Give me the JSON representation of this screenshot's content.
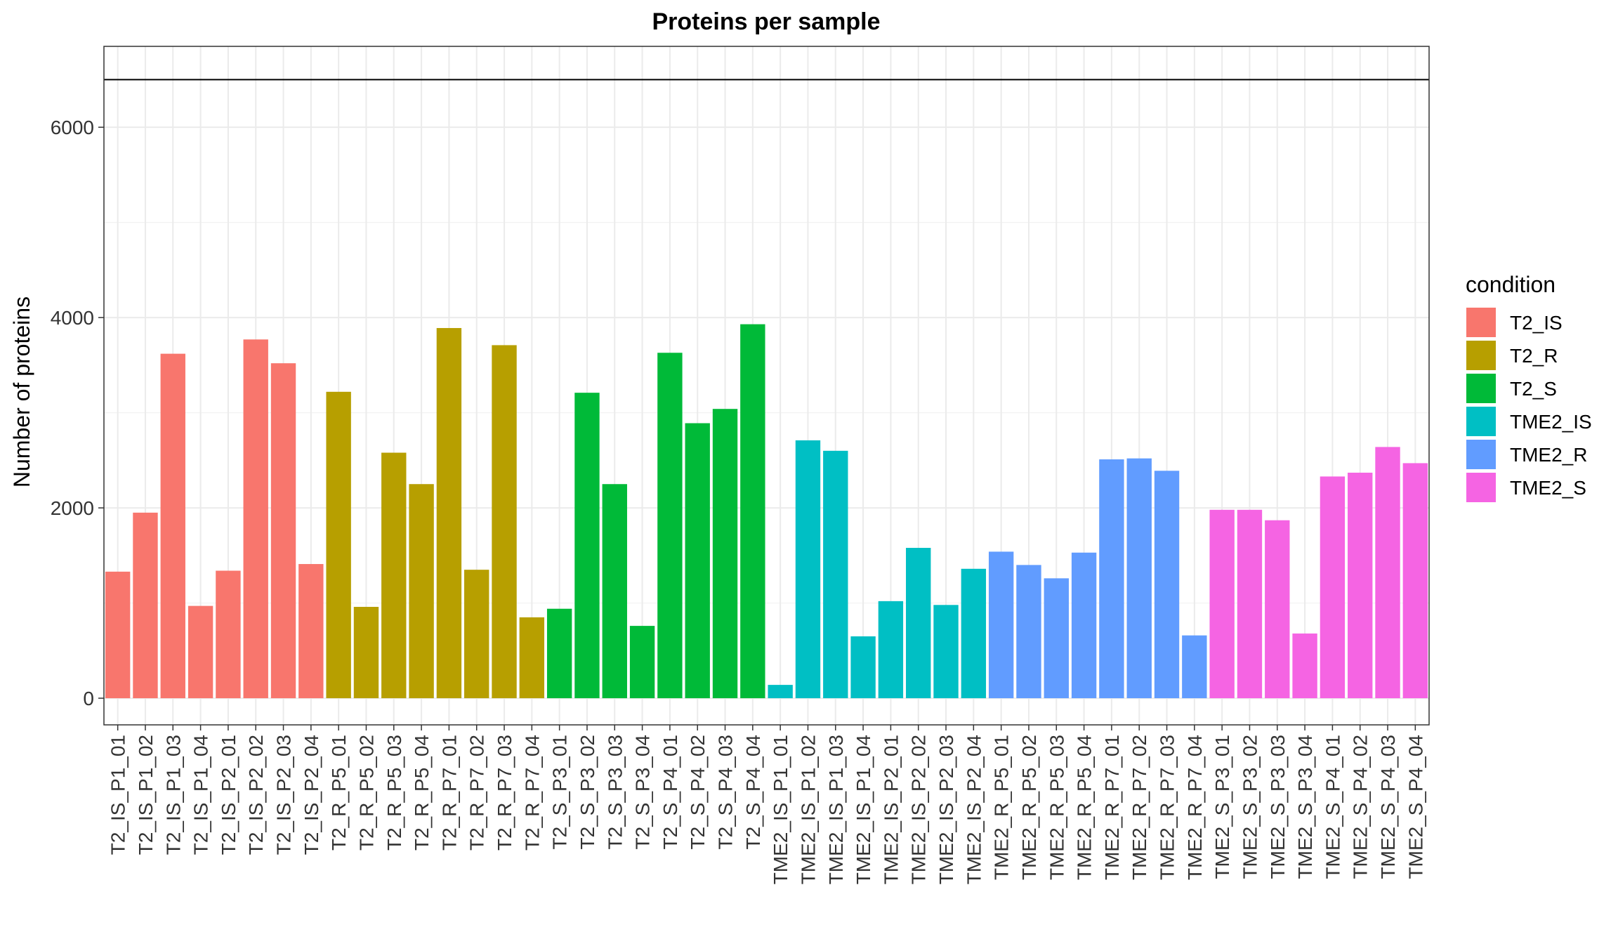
{
  "chart_data": {
    "type": "bar",
    "title": "Proteins per sample",
    "xlabel": "",
    "ylabel": "Number of proteins",
    "ylim": [
      -280,
      6850
    ],
    "yticks": [
      0,
      2000,
      4000,
      6000
    ],
    "reference_line": 6500,
    "grid": true,
    "legend": {
      "title": "condition",
      "position": "right",
      "entries": [
        {
          "name": "T2_IS",
          "color": "#F8766D"
        },
        {
          "name": "T2_R",
          "color": "#B79F00"
        },
        {
          "name": "T2_S",
          "color": "#00BA38"
        },
        {
          "name": "TME2_IS",
          "color": "#00BFC4"
        },
        {
          "name": "TME2_R",
          "color": "#619CFF"
        },
        {
          "name": "TME2_S",
          "color": "#F564E3"
        }
      ]
    },
    "categories": [
      "T2_IS_P1_01",
      "T2_IS_P1_02",
      "T2_IS_P1_03",
      "T2_IS_P1_04",
      "T2_IS_P2_01",
      "T2_IS_P2_02",
      "T2_IS_P2_03",
      "T2_IS_P2_04",
      "T2_R_P5_01",
      "T2_R_P5_02",
      "T2_R_P5_03",
      "T2_R_P5_04",
      "T2_R_P7_01",
      "T2_R_P7_02",
      "T2_R_P7_03",
      "T2_R_P7_04",
      "T2_S_P3_01",
      "T2_S_P3_02",
      "T2_S_P3_03",
      "T2_S_P3_04",
      "T2_S_P4_01",
      "T2_S_P4_02",
      "T2_S_P4_03",
      "T2_S_P4_04",
      "TME2_IS_P1_01",
      "TME2_IS_P1_02",
      "TME2_IS_P1_03",
      "TME2_IS_P1_04",
      "TME2_IS_P2_01",
      "TME2_IS_P2_02",
      "TME2_IS_P2_03",
      "TME2_IS_P2_04",
      "TME2_R_P5_01",
      "TME2_R_P5_02",
      "TME2_R_P5_03",
      "TME2_R_P5_04",
      "TME2_R_P7_01",
      "TME2_R_P7_02",
      "TME2_R_P7_03",
      "TME2_R_P7_04",
      "TME2_S_P3_01",
      "TME2_S_P3_02",
      "TME2_S_P3_03",
      "TME2_S_P3_04",
      "TME2_S_P4_01",
      "TME2_S_P4_02",
      "TME2_S_P4_03",
      "TME2_S_P4_04"
    ],
    "values": [
      1330,
      1950,
      3620,
      970,
      1340,
      3770,
      3520,
      1410,
      3220,
      960,
      2580,
      2250,
      3890,
      1350,
      3710,
      850,
      940,
      3210,
      2250,
      760,
      3630,
      2890,
      3040,
      3930,
      140,
      2710,
      2600,
      650,
      1020,
      1580,
      980,
      1360,
      1540,
      1400,
      1260,
      1530,
      2510,
      2520,
      2390,
      660,
      1980,
      1980,
      1870,
      680,
      2330,
      2370,
      2640,
      2470
    ],
    "conditions": [
      "T2_IS",
      "T2_IS",
      "T2_IS",
      "T2_IS",
      "T2_IS",
      "T2_IS",
      "T2_IS",
      "T2_IS",
      "T2_R",
      "T2_R",
      "T2_R",
      "T2_R",
      "T2_R",
      "T2_R",
      "T2_R",
      "T2_R",
      "T2_S",
      "T2_S",
      "T2_S",
      "T2_S",
      "T2_S",
      "T2_S",
      "T2_S",
      "T2_S",
      "TME2_IS",
      "TME2_IS",
      "TME2_IS",
      "TME2_IS",
      "TME2_IS",
      "TME2_IS",
      "TME2_IS",
      "TME2_IS",
      "TME2_R",
      "TME2_R",
      "TME2_R",
      "TME2_R",
      "TME2_R",
      "TME2_R",
      "TME2_R",
      "TME2_R",
      "TME2_S",
      "TME2_S",
      "TME2_S",
      "TME2_S",
      "TME2_S",
      "TME2_S",
      "TME2_S",
      "TME2_S"
    ]
  }
}
